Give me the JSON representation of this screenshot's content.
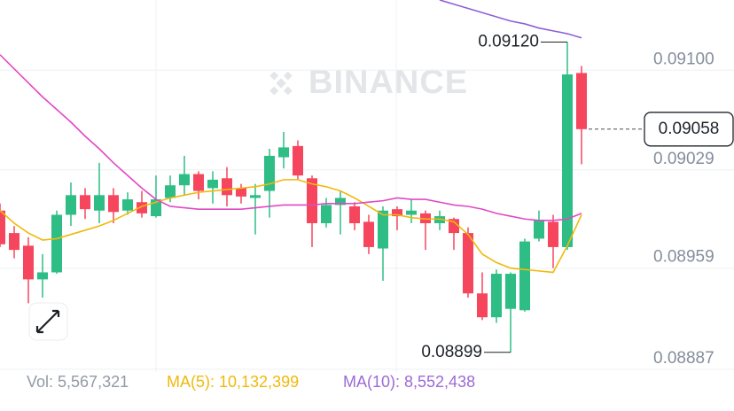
{
  "chart_data": {
    "type": "candlestick",
    "watermark": "BINANCE",
    "open": [
      0.09,
      0.08984,
      0.08975,
      0.08951,
      0.08956,
      0.08997,
      0.09011,
      0.09,
      0.09011,
      0.09,
      0.09006,
      0.08996,
      0.09009,
      0.09018,
      0.09026,
      0.09016,
      0.09023,
      0.09016,
      0.09009,
      0.09014,
      0.09038,
      0.09046,
      0.09023,
      0.08991,
      0.09004,
      0.09003,
      0.08992,
      0.08973,
      0.09001,
      0.08997,
      0.08998,
      0.08991,
      0.08994,
      0.08984,
      0.08941,
      0.08924,
      0.0893,
      0.08929,
      0.0898,
      0.08992,
      0.08974,
      0.09098
    ],
    "high": [
      0.09005,
      0.08989,
      0.08981,
      0.08969,
      0.09,
      0.0902,
      0.09016,
      0.09034,
      0.09016,
      0.09013,
      0.09014,
      0.09025,
      0.09025,
      0.09039,
      0.09028,
      0.09028,
      0.09031,
      0.09019,
      0.09019,
      0.09044,
      0.09056,
      0.0905,
      0.09025,
      0.09009,
      0.09014,
      0.09006,
      0.08997,
      0.09003,
      0.09003,
      0.09008,
      0.09,
      0.09,
      0.08995,
      0.08988,
      0.08956,
      0.08958,
      0.08956,
      0.0898,
      0.09,
      0.08997,
      0.0912,
      0.09103
    ],
    "low": [
      0.08974,
      0.08966,
      0.08934,
      0.08938,
      0.08955,
      0.08989,
      0.08994,
      0.08991,
      0.08991,
      0.08997,
      0.08995,
      0.08995,
      0.09006,
      0.09011,
      0.09008,
      0.09005,
      0.09003,
      0.09005,
      0.08983,
      0.08995,
      0.0903,
      0.09022,
      0.08974,
      0.08988,
      0.08983,
      0.08986,
      0.08969,
      0.0895,
      0.08986,
      0.08991,
      0.08972,
      0.08986,
      0.08972,
      0.08938,
      0.08922,
      0.0892,
      0.08899,
      0.08928,
      0.08978,
      0.08959,
      0.08972,
      0.09033
    ],
    "close": [
      0.08976,
      0.08972,
      0.08951,
      0.08956,
      0.08997,
      0.09011,
      0.09001,
      0.09011,
      0.08999,
      0.09008,
      0.08998,
      0.09008,
      0.09018,
      0.09026,
      0.09014,
      0.09022,
      0.09011,
      0.0901,
      0.09011,
      0.09039,
      0.09045,
      0.09025,
      0.08991,
      0.09004,
      0.09009,
      0.08991,
      0.08974,
      0.09,
      0.08996,
      0.09,
      0.08991,
      0.08996,
      0.08984,
      0.08941,
      0.08924,
      0.08955,
      0.08955,
      0.08978,
      0.08993,
      0.08974,
      0.09097,
      0.09058
    ],
    "up_color": "#2ebd85",
    "down_color": "#f6465d",
    "series": [
      {
        "color": "#f0b90b",
        "values": [
          0.09,
          0.08991,
          0.08984,
          0.08979,
          0.0898,
          0.08983,
          0.08986,
          0.08989,
          0.08993,
          0.08998,
          0.09003,
          0.09006,
          0.09009,
          0.09011,
          0.09013,
          0.09014,
          0.09015,
          0.09016,
          0.09017,
          0.09019,
          0.09022,
          0.09022,
          0.09019,
          0.09017,
          0.09014,
          0.09009,
          0.09003,
          0.08997,
          0.08997,
          0.08995,
          0.08994,
          0.08994,
          0.08992,
          0.08983,
          0.08969,
          0.08963,
          0.08959,
          0.08958,
          0.08957,
          0.08956,
          0.08975,
          0.08997
        ]
      },
      {
        "color": "#e149c4",
        "values": [
          0.09111,
          0.09101,
          0.09091,
          0.09081,
          0.09072,
          0.09063,
          0.09053,
          0.09044,
          0.09034,
          0.09025,
          0.09016,
          0.09008,
          0.09003,
          0.09002,
          0.09001,
          0.09001,
          0.09001,
          0.09001,
          0.09002,
          0.09003,
          0.09004,
          0.09004,
          0.09004,
          0.09005,
          0.09005,
          0.09005,
          0.09006,
          0.09007,
          0.09009,
          0.09008,
          0.09008,
          0.09006,
          0.09004,
          0.09003,
          0.09001,
          0.08998,
          0.08996,
          0.08994,
          0.08993,
          0.08993,
          0.08994,
          0.08998
        ]
      },
      {
        "color": "#8e60d6",
        "values": [
          null,
          null,
          null,
          null,
          null,
          null,
          null,
          null,
          null,
          null,
          null,
          null,
          null,
          null,
          null,
          null,
          null,
          null,
          null,
          null,
          null,
          null,
          null,
          null,
          null,
          null,
          null,
          null,
          null,
          null,
          null,
          0.0915,
          0.09147,
          0.09144,
          0.09141,
          0.09138,
          0.09135,
          0.09133,
          0.0913,
          0.09128,
          0.09126,
          0.09123
        ]
      }
    ],
    "ylim": [
      0.08885,
      0.0915
    ],
    "yticks": [
      {
        "value": 0.091,
        "label": "0.09100"
      },
      0.09029,
      0.08959,
      0.08887
    ],
    "grid": true,
    "annotations": [
      {
        "value": 0.0912,
        "label": "0.09120"
      },
      {
        "value": 0.08899,
        "label": "0.08899"
      }
    ],
    "last_price": 0.09058,
    "volume_legend": [
      {
        "text": "Vol: 5,567,321",
        "color": "#929aa5"
      },
      {
        "text": "MA(5): 10,132,399",
        "color": "#f0b90b"
      },
      {
        "text": "MA(10): 8,552,438",
        "color": "#9c6ad6"
      }
    ]
  }
}
